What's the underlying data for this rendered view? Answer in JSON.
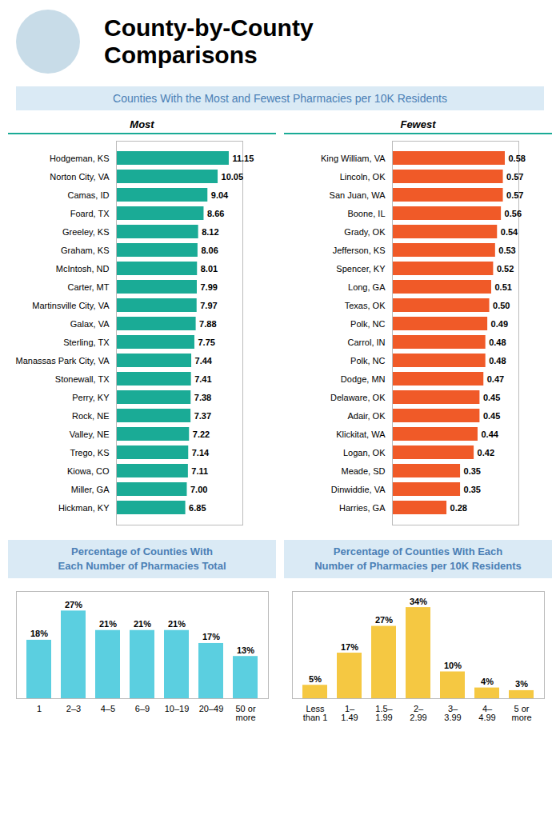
{
  "title": "County-by-County\nComparisons",
  "subtitle": "Counties With the Most and Fewest Pharmacies per 10K Residents",
  "chart_data": [
    {
      "type": "bar",
      "orientation": "horizontal",
      "title": "Most",
      "categories": [
        "Hodgeman, KS",
        "Norton City, VA",
        "Camas, ID",
        "Foard, TX",
        "Greeley, KS",
        "Graham, KS",
        "McIntosh, ND",
        "Carter, MT",
        "Martinsville City, VA",
        "Galax, VA",
        "Sterling, TX",
        "Manassas Park City, VA",
        "Stonewall, TX",
        "Perry, KY",
        "Rock, NE",
        "Valley, NE",
        "Trego, KS",
        "Kiowa, CO",
        "Miller, GA",
        "Hickman, KY"
      ],
      "values": [
        11.15,
        10.05,
        9.04,
        8.66,
        8.12,
        8.06,
        8.01,
        7.99,
        7.97,
        7.88,
        7.75,
        7.44,
        7.41,
        7.38,
        7.37,
        7.22,
        7.14,
        7.11,
        7.0,
        6.85
      ],
      "value_labels": [
        "11.15",
        "10.05",
        "9.04",
        "8.66",
        "8.12",
        "8.06",
        "8.01",
        "7.99",
        "7.97",
        "7.88",
        "7.75",
        "7.44",
        "7.41",
        "7.38",
        "7.37",
        "7.22",
        "7.14",
        "7.11",
        "7.00",
        "6.85"
      ],
      "color": "#1aab96",
      "xlim": [
        0,
        12.5
      ],
      "data_labels": true,
      "tick_labels": "y"
    },
    {
      "type": "bar",
      "orientation": "horizontal",
      "title": "Fewest",
      "categories": [
        "King William, VA",
        "Lincoln, OK",
        "San Juan, WA",
        "Boone, IL",
        "Grady, OK",
        "Jefferson, KS",
        "Spencer, KY",
        "Long, GA",
        "Texas, OK",
        "Polk, NC",
        "Carrol, IN",
        "Polk, NC",
        "Dodge, MN",
        "Delaware, OK",
        "Adair, OK",
        "Klickitat, WA",
        "Logan, OK",
        "Meade, SD",
        "Dinwiddie, VA",
        "Harries, GA"
      ],
      "values": [
        0.58,
        0.57,
        0.57,
        0.56,
        0.54,
        0.53,
        0.52,
        0.51,
        0.5,
        0.49,
        0.48,
        0.48,
        0.47,
        0.45,
        0.45,
        0.44,
        0.42,
        0.35,
        0.35,
        0.28
      ],
      "value_labels": [
        "0.58",
        "0.57",
        "0.57",
        "0.56",
        "0.54",
        "0.53",
        "0.52",
        "0.51",
        "0.50",
        "0.49",
        "0.48",
        "0.48",
        "0.47",
        "0.45",
        "0.45",
        "0.44",
        "0.42",
        "0.35",
        "0.35",
        "0.28"
      ],
      "color": "#f05a28",
      "xlim": [
        0,
        0.65
      ],
      "data_labels": true,
      "tick_labels": "y"
    },
    {
      "type": "bar",
      "title": "Percentage of Counties With\nEach Number of Pharmacies Total",
      "categories": [
        "1",
        "2–3",
        "4–5",
        "6–9",
        "10–19",
        "20–49",
        "50 or\nmore"
      ],
      "values": [
        18,
        27,
        21,
        21,
        21,
        17,
        13
      ],
      "value_labels": [
        "18%",
        "27%",
        "21%",
        "21%",
        "21%",
        "17%",
        "13%"
      ],
      "color": "#5bcfe0",
      "ylim": [
        0,
        33
      ],
      "data_labels": true,
      "tick_labels": "x"
    },
    {
      "type": "bar",
      "title": "Percentage of Counties With Each\nNumber of Pharmacies per 10K Residents",
      "categories": [
        "Less\nthan 1",
        "1–\n1.49",
        "1.5–\n1.99",
        "2–\n2.99",
        "3–\n3.99",
        "4–\n4.99",
        "5 or\nmore"
      ],
      "values": [
        5,
        17,
        27,
        34,
        10,
        4,
        3
      ],
      "value_labels": [
        "5%",
        "17%",
        "27%",
        "34%",
        "10%",
        "4%",
        "3%"
      ],
      "color": "#f5c842",
      "ylim": [
        0,
        40
      ],
      "data_labels": true,
      "tick_labels": "x"
    }
  ]
}
